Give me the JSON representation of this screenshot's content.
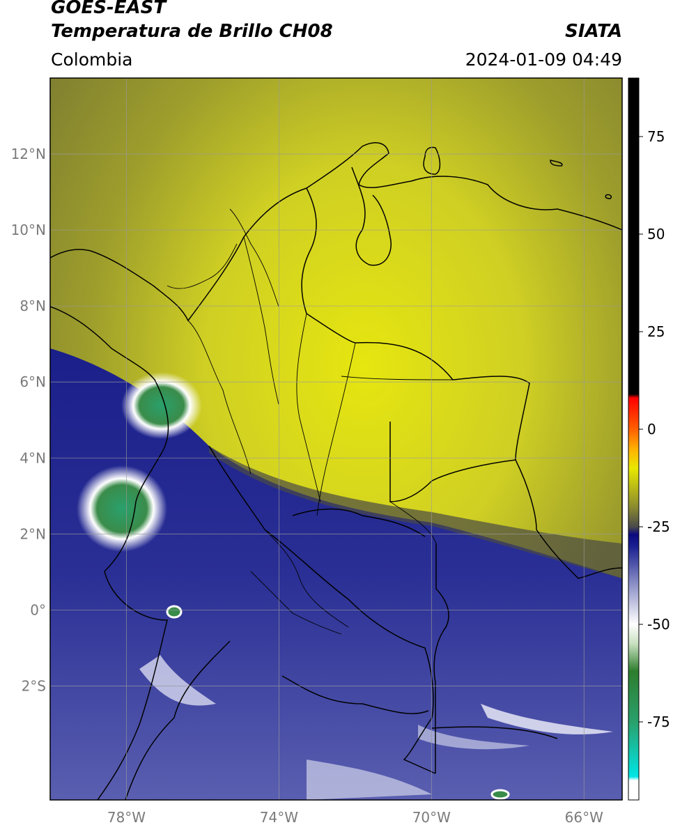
{
  "header": {
    "title_line1": "GOES-EAST",
    "title_line2": "Temperatura de Brillo CH08",
    "brand": "SIATA",
    "region": "Colombia",
    "timestamp": "2024-01-09 04:49"
  },
  "map": {
    "lon_range": [
      -80,
      -65
    ],
    "lat_range": [
      -5,
      14
    ],
    "lat_ticks": [
      {
        "value": 12,
        "label": "12°N"
      },
      {
        "value": 10,
        "label": "10°N"
      },
      {
        "value": 8,
        "label": "8°N"
      },
      {
        "value": 6,
        "label": "6°N"
      },
      {
        "value": 4,
        "label": "4°N"
      },
      {
        "value": 2,
        "label": "2°N"
      },
      {
        "value": 0,
        "label": "0°"
      },
      {
        "value": -2,
        "label": "2°S"
      }
    ],
    "lon_ticks": [
      {
        "value": -78,
        "label": "78°W"
      },
      {
        "value": -74,
        "label": "74°W"
      },
      {
        "value": -70,
        "label": "70°W"
      },
      {
        "value": -66,
        "label": "66°W"
      }
    ],
    "gridlines": true
  },
  "colorbar": {
    "range": [
      -95,
      90
    ],
    "ticks": [
      {
        "value": 75,
        "label": "75"
      },
      {
        "value": 50,
        "label": "50"
      },
      {
        "value": 25,
        "label": "25"
      },
      {
        "value": 0,
        "label": "0"
      },
      {
        "value": -25,
        "label": "-25"
      },
      {
        "value": -50,
        "label": "-50"
      },
      {
        "value": -75,
        "label": "-75"
      }
    ],
    "stops": [
      {
        "value": -95,
        "color": "#ffffff"
      },
      {
        "value": -90,
        "color": "#ffffff"
      },
      {
        "value": -89,
        "color": "#00e5e5"
      },
      {
        "value": -75,
        "color": "#2aa06c"
      },
      {
        "value": -62,
        "color": "#2e7d2e"
      },
      {
        "value": -55,
        "color": "#c8e0c0"
      },
      {
        "value": -50,
        "color": "#ffffff"
      },
      {
        "value": -40,
        "color": "#8f93c8"
      },
      {
        "value": -30,
        "color": "#1a2090"
      },
      {
        "value": -27,
        "color": "#0a0a80"
      },
      {
        "value": -25,
        "color": "#4a4a4a"
      },
      {
        "value": -20,
        "color": "#8a8a30"
      },
      {
        "value": -10,
        "color": "#e8e800"
      },
      {
        "value": -5,
        "color": "#ffb000"
      },
      {
        "value": 0,
        "color": "#ff6000"
      },
      {
        "value": 8,
        "color": "#ff0000"
      },
      {
        "value": 9,
        "color": "#000000"
      },
      {
        "value": 90,
        "color": "#000000"
      }
    ]
  }
}
